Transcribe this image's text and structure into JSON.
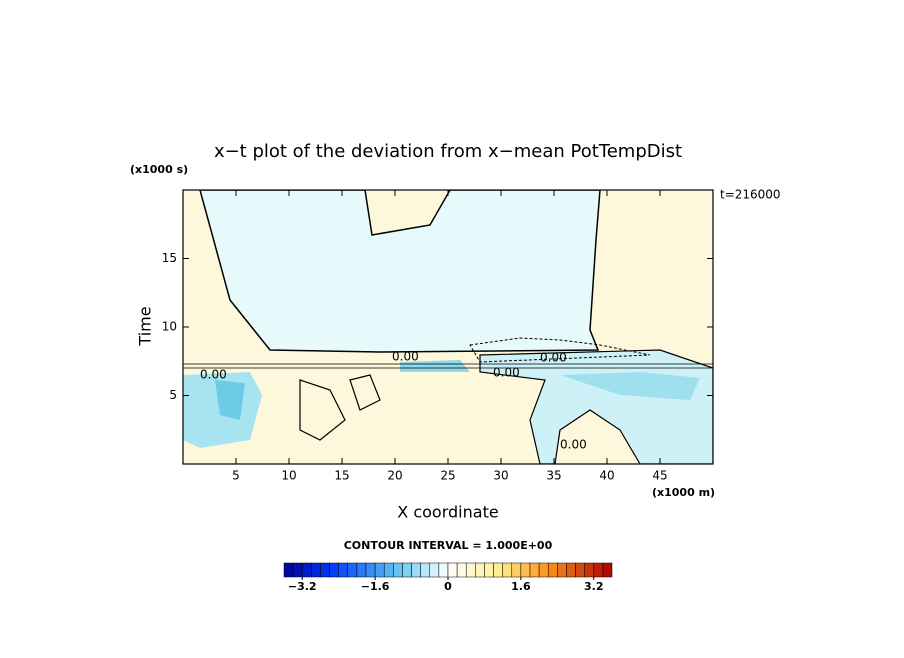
{
  "chart_data": {
    "type": "contour",
    "title": "x−t plot of the deviation from x−mean PotTempDist",
    "xlabel": "X coordinate",
    "xunit": "(x1000 m)",
    "ylabel": "Time",
    "yunit": "(x1000 s)",
    "time_label": "t=216000",
    "contour_interval": "CONTOUR INTERVAL = 1.000E+00",
    "contour_labels": [
      "0.00",
      "0.00",
      "0.00",
      "0.00",
      "0.00"
    ],
    "xlim": [
      0,
      50
    ],
    "xticks": [
      5,
      10,
      15,
      20,
      25,
      30,
      35,
      40,
      45
    ],
    "ylim": [
      0,
      20
    ],
    "yticks": [
      5,
      10,
      15
    ],
    "clim": [
      -3.6,
      3.6
    ],
    "cticks": [
      {
        "value": -3.2,
        "label": "−3.2"
      },
      {
        "value": -1.6,
        "label": "−1.6"
      },
      0,
      1.6,
      3.2
    ]
  }
}
